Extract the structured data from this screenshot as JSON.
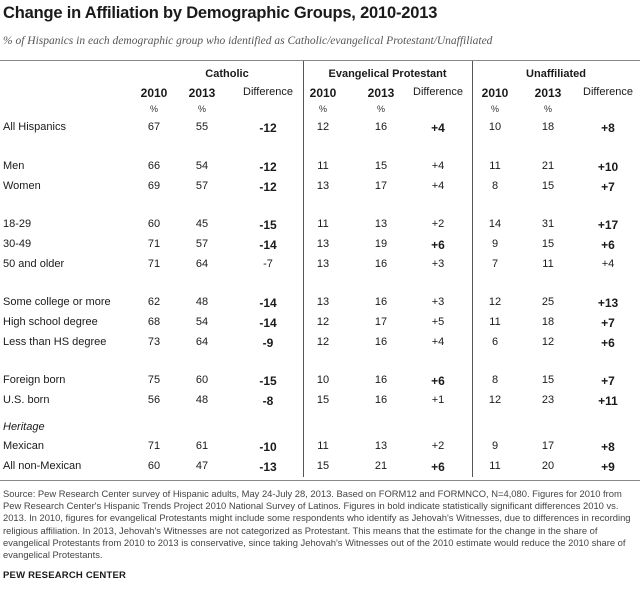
{
  "title": "Change in Affiliation by Demographic Groups, 2010-2013",
  "subtitle": "% of Hispanics in each demographic group who identified as Catholic/evangelical Protestant/Unaffiliated",
  "groups": [
    "Catholic",
    "Evangelical Protestant",
    "Unaffiliated"
  ],
  "col_headers": {
    "y2010": "2010",
    "y2013": "2013",
    "diff": "Difference",
    "pct": "%"
  },
  "section_heritage": "Heritage",
  "rows": [
    {
      "label": "All Hispanics",
      "c10": "67",
      "c13": "55",
      "cd": "-12",
      "cdb": true,
      "e10": "12",
      "e13": "16",
      "ed": "+4",
      "edb": true,
      "u10": "10",
      "u13": "18",
      "ud": "+8",
      "udb": true
    },
    {
      "label": "Men",
      "c10": "66",
      "c13": "54",
      "cd": "-12",
      "cdb": true,
      "e10": "11",
      "e13": "15",
      "ed": "+4",
      "edb": false,
      "u10": "11",
      "u13": "21",
      "ud": "+10",
      "udb": true
    },
    {
      "label": "Women",
      "c10": "69",
      "c13": "57",
      "cd": "-12",
      "cdb": true,
      "e10": "13",
      "e13": "17",
      "ed": "+4",
      "edb": false,
      "u10": "8",
      "u13": "15",
      "ud": "+7",
      "udb": true
    },
    {
      "label": "18-29",
      "c10": "60",
      "c13": "45",
      "cd": "-15",
      "cdb": true,
      "e10": "11",
      "e13": "13",
      "ed": "+2",
      "edb": false,
      "u10": "14",
      "u13": "31",
      "ud": "+17",
      "udb": true
    },
    {
      "label": "30-49",
      "c10": "71",
      "c13": "57",
      "cd": "-14",
      "cdb": true,
      "e10": "13",
      "e13": "19",
      "ed": "+6",
      "edb": true,
      "u10": "9",
      "u13": "15",
      "ud": "+6",
      "udb": true
    },
    {
      "label": "50 and older",
      "c10": "71",
      "c13": "64",
      "cd": "-7",
      "cdb": false,
      "e10": "13",
      "e13": "16",
      "ed": "+3",
      "edb": false,
      "u10": "7",
      "u13": "11",
      "ud": "+4",
      "udb": false
    },
    {
      "label": "Some college or more",
      "c10": "62",
      "c13": "48",
      "cd": "-14",
      "cdb": true,
      "e10": "13",
      "e13": "16",
      "ed": "+3",
      "edb": false,
      "u10": "12",
      "u13": "25",
      "ud": "+13",
      "udb": true
    },
    {
      "label": "High school degree",
      "c10": "68",
      "c13": "54",
      "cd": "-14",
      "cdb": true,
      "e10": "12",
      "e13": "17",
      "ed": "+5",
      "edb": false,
      "u10": "11",
      "u13": "18",
      "ud": "+7",
      "udb": true
    },
    {
      "label": "Less than HS degree",
      "c10": "73",
      "c13": "64",
      "cd": "-9",
      "cdb": true,
      "e10": "12",
      "e13": "16",
      "ed": "+4",
      "edb": false,
      "u10": "6",
      "u13": "12",
      "ud": "+6",
      "udb": true
    },
    {
      "label": "Foreign born",
      "c10": "75",
      "c13": "60",
      "cd": "-15",
      "cdb": true,
      "e10": "10",
      "e13": "16",
      "ed": "+6",
      "edb": true,
      "u10": "8",
      "u13": "15",
      "ud": "+7",
      "udb": true
    },
    {
      "label": "U.S. born",
      "c10": "56",
      "c13": "48",
      "cd": "-8",
      "cdb": true,
      "e10": "15",
      "e13": "16",
      "ed": "+1",
      "edb": false,
      "u10": "12",
      "u13": "23",
      "ud": "+11",
      "udb": true
    },
    {
      "label": "Mexican",
      "c10": "71",
      "c13": "61",
      "cd": "-10",
      "cdb": true,
      "e10": "11",
      "e13": "13",
      "ed": "+2",
      "edb": false,
      "u10": "9",
      "u13": "17",
      "ud": "+8",
      "udb": true
    },
    {
      "label": "All non-Mexican",
      "c10": "60",
      "c13": "47",
      "cd": "-13",
      "cdb": true,
      "e10": "15",
      "e13": "21",
      "ed": "+6",
      "edb": true,
      "u10": "11",
      "u13": "20",
      "ud": "+9",
      "udb": true
    }
  ],
  "source": "Source: Pew Research Center survey of Hispanic adults, May 24-July 28, 2013. Based on FORM12 and FORMNCO, N=4,080. Figures for 2010 from Pew Research Center's Hispanic Trends Project 2010 National Survey of Latinos. Figures in bold indicate statistically significant differences 2010 vs. 2013. In 2010, figures for evangelical Protestants might include some respondents who identify as Jehovah's Witnesses, due to differences in recording religious affiliation. In 2013, Jehovah's Witnesses are not categorized as Protestant. This means that the estimate for the change in the share of evangelical Protestants from 2010 to 2013 is conservative, since taking Jehovah's Witnesses out of the 2010 estimate would reduce the 2010 share of evangelical Protestants.",
  "brand": "PEW RESEARCH CENTER"
}
